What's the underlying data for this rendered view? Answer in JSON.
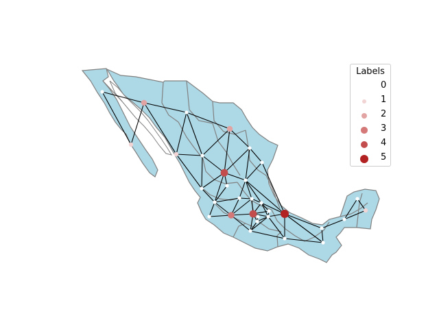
{
  "colors": {
    "land": "#add8e6",
    "border": "#808080",
    "edge": "#000000",
    "node_default": "#ffffff"
  },
  "legend": {
    "title": "Labels",
    "items": [
      {
        "label": "0",
        "color": "#ffffff"
      },
      {
        "label": "1",
        "color": "#f2d4d4"
      },
      {
        "label": "2",
        "color": "#e2a3a3"
      },
      {
        "label": "3",
        "color": "#d47878"
      },
      {
        "label": "4",
        "color": "#c34d4d"
      },
      {
        "label": "5",
        "color": "#b22222"
      }
    ]
  },
  "nodes": [
    {
      "id": "bc",
      "label": 0
    },
    {
      "id": "son",
      "label": 2
    },
    {
      "id": "chih",
      "label": 0
    },
    {
      "id": "coah",
      "label": 2
    },
    {
      "id": "bcs",
      "label": 1
    },
    {
      "id": "sin",
      "label": 1
    },
    {
      "id": "dgo",
      "label": 0
    },
    {
      "id": "nl",
      "label": 0
    },
    {
      "id": "tamps",
      "label": 0
    },
    {
      "id": "zac",
      "label": 4
    },
    {
      "id": "nay",
      "label": 0
    },
    {
      "id": "ags",
      "label": 0
    },
    {
      "id": "slp",
      "label": 0
    },
    {
      "id": "jal",
      "label": 0
    },
    {
      "id": "gto",
      "label": 0
    },
    {
      "id": "qro",
      "label": 0
    },
    {
      "id": "hgo",
      "label": 0
    },
    {
      "id": "col",
      "label": 0
    },
    {
      "id": "mich",
      "label": 3
    },
    {
      "id": "mex",
      "label": 4
    },
    {
      "id": "cdmx",
      "label": 0
    },
    {
      "id": "mor",
      "label": 0
    },
    {
      "id": "tlax",
      "label": 0
    },
    {
      "id": "pue",
      "label": 0
    },
    {
      "id": "ver",
      "label": 5
    },
    {
      "id": "gro",
      "label": 0
    },
    {
      "id": "oax",
      "label": 0
    },
    {
      "id": "chis",
      "label": 0
    },
    {
      "id": "tab",
      "label": 0
    },
    {
      "id": "camp",
      "label": 0
    },
    {
      "id": "yuc",
      "label": 0
    },
    {
      "id": "qroo",
      "label": 1
    }
  ],
  "edges": [
    [
      "bc",
      "son"
    ],
    [
      "bc",
      "bcs"
    ],
    [
      "son",
      "chih"
    ],
    [
      "son",
      "sin"
    ],
    [
      "son",
      "bcs"
    ],
    [
      "chih",
      "coah"
    ],
    [
      "chih",
      "sin"
    ],
    [
      "chih",
      "dgo"
    ],
    [
      "coah",
      "nl"
    ],
    [
      "coah",
      "zac"
    ],
    [
      "coah",
      "dgo"
    ],
    [
      "sin",
      "dgo"
    ],
    [
      "sin",
      "nay"
    ],
    [
      "dgo",
      "zac"
    ],
    [
      "dgo",
      "nay"
    ],
    [
      "nl",
      "tamps"
    ],
    [
      "nl",
      "zac"
    ],
    [
      "nl",
      "slp"
    ],
    [
      "tamps",
      "slp"
    ],
    [
      "tamps",
      "ver"
    ],
    [
      "zac",
      "nay"
    ],
    [
      "zac",
      "jal"
    ],
    [
      "zac",
      "ags"
    ],
    [
      "zac",
      "slp"
    ],
    [
      "nay",
      "jal"
    ],
    [
      "ags",
      "jal"
    ],
    [
      "slp",
      "gto"
    ],
    [
      "slp",
      "qro"
    ],
    [
      "slp",
      "hgo"
    ],
    [
      "slp",
      "ver"
    ],
    [
      "jal",
      "gto"
    ],
    [
      "jal",
      "col"
    ],
    [
      "jal",
      "mich"
    ],
    [
      "gto",
      "qro"
    ],
    [
      "gto",
      "mich"
    ],
    [
      "qro",
      "hgo"
    ],
    [
      "qro",
      "mex"
    ],
    [
      "qro",
      "mich"
    ],
    [
      "hgo",
      "ver"
    ],
    [
      "hgo",
      "pue"
    ],
    [
      "hgo",
      "mex"
    ],
    [
      "hgo",
      "tlax"
    ],
    [
      "col",
      "mich"
    ],
    [
      "mich",
      "mex"
    ],
    [
      "mich",
      "gro"
    ],
    [
      "mex",
      "cdmx"
    ],
    [
      "mex",
      "mor"
    ],
    [
      "mex",
      "tlax"
    ],
    [
      "mex",
      "pue"
    ],
    [
      "mex",
      "gro"
    ],
    [
      "cdmx",
      "mor"
    ],
    [
      "mor",
      "pue"
    ],
    [
      "mor",
      "gro"
    ],
    [
      "tlax",
      "pue"
    ],
    [
      "pue",
      "ver"
    ],
    [
      "pue",
      "gro"
    ],
    [
      "pue",
      "oax"
    ],
    [
      "ver",
      "oax"
    ],
    [
      "ver",
      "chis"
    ],
    [
      "ver",
      "tab"
    ],
    [
      "gro",
      "oax"
    ],
    [
      "oax",
      "chis"
    ],
    [
      "chis",
      "tab"
    ],
    [
      "tab",
      "camp"
    ],
    [
      "camp",
      "yuc"
    ],
    [
      "camp",
      "qroo"
    ],
    [
      "yuc",
      "qroo"
    ]
  ]
}
